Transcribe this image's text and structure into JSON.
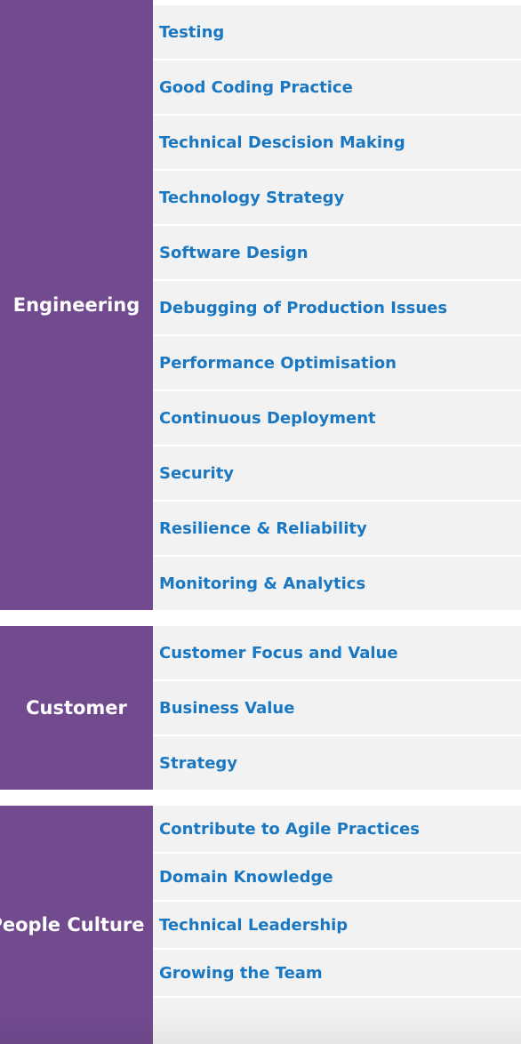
{
  "sections": [
    {
      "category": "Engineering",
      "items": [
        "Testing",
        "Good Coding Practice",
        "Technical Descision Making",
        "Technology Strategy",
        "Software Design",
        "Debugging of Production Issues",
        "Performance Optimisation",
        "Continuous Deployment",
        "Security",
        "Resilience & Reliability",
        "Monitoring & Analytics"
      ]
    },
    {
      "category": "Customer",
      "items": [
        "Customer Focus and Value",
        "Business Value",
        "Strategy"
      ]
    },
    {
      "category": "People Culture",
      "items": [
        "Contribute to Agile Practices",
        "Domain Knowledge",
        "Technical Leadership",
        "Growing the Team",
        ""
      ]
    }
  ],
  "colors": {
    "category_bg": "#724b8f",
    "item_bg": "#f2f2f2",
    "item_text": "#1a78c2"
  }
}
